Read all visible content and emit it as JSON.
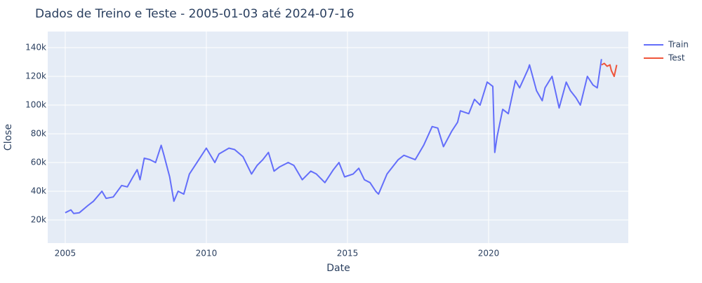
{
  "chart_data": {
    "type": "line",
    "title": "Dados de Treino e Teste - 2005-01-03 até 2024-07-16",
    "x_label": "Date",
    "y_label": "Close",
    "xlim": [
      2004.38,
      2024.95
    ],
    "xticks": [
      2005,
      2010,
      2015,
      2020
    ],
    "ylim": [
      3900,
      151200
    ],
    "yticks": [
      {
        "value": 20000,
        "label": "20k"
      },
      {
        "value": 40000,
        "label": "40k"
      },
      {
        "value": 60000,
        "label": "60k"
      },
      {
        "value": 80000,
        "label": "80k"
      },
      {
        "value": 100000,
        "label": "100k"
      },
      {
        "value": 120000,
        "label": "120k"
      },
      {
        "value": 140000,
        "label": "140k"
      }
    ],
    "grid": true,
    "legend": "top-right",
    "series": [
      {
        "name": "Train",
        "color": "#636efa",
        "x": [
          2005.0,
          2005.2,
          2005.3,
          2005.5,
          2005.8,
          2006.0,
          2006.3,
          2006.45,
          2006.7,
          2007.0,
          2007.2,
          2007.4,
          2007.55,
          2007.65,
          2007.8,
          2008.0,
          2008.2,
          2008.4,
          2008.5,
          2008.7,
          2008.85,
          2009.0,
          2009.2,
          2009.4,
          2009.7,
          2010.0,
          2010.3,
          2010.45,
          2010.8,
          2011.0,
          2011.3,
          2011.6,
          2011.8,
          2012.0,
          2012.2,
          2012.4,
          2012.6,
          2012.9,
          2013.1,
          2013.4,
          2013.7,
          2013.9,
          2014.2,
          2014.5,
          2014.7,
          2014.9,
          2015.2,
          2015.4,
          2015.6,
          2015.8,
          2016.0,
          2016.1,
          2016.4,
          2016.8,
          2017.0,
          2017.4,
          2017.7,
          2018.0,
          2018.2,
          2018.4,
          2018.7,
          2018.9,
          2019.0,
          2019.3,
          2019.5,
          2019.7,
          2019.95,
          2020.15,
          2020.22,
          2020.3,
          2020.5,
          2020.7,
          2020.95,
          2021.1,
          2021.4,
          2021.45,
          2021.7,
          2021.9,
          2022.0,
          2022.25,
          2022.5,
          2022.75,
          2022.9,
          2023.1,
          2023.25,
          2023.5,
          2023.7,
          2023.85,
          2024.0
        ],
        "values": [
          25000,
          27000,
          24500,
          25000,
          30000,
          33000,
          40000,
          35000,
          36000,
          44000,
          43000,
          50000,
          55000,
          48000,
          63000,
          62000,
          60000,
          72000,
          65000,
          50000,
          33000,
          40000,
          38000,
          52000,
          61000,
          70000,
          60000,
          66000,
          70000,
          69000,
          64000,
          52000,
          58000,
          62000,
          67000,
          54000,
          57000,
          60000,
          58000,
          48000,
          54000,
          52000,
          46000,
          55000,
          60000,
          50000,
          52000,
          56000,
          48000,
          46000,
          40000,
          38000,
          52000,
          62000,
          65000,
          62000,
          72000,
          85000,
          84000,
          71000,
          82000,
          88000,
          96000,
          94000,
          104000,
          100000,
          116000,
          113000,
          67000,
          78000,
          97000,
          94000,
          117000,
          112000,
          125000,
          128000,
          110000,
          103000,
          112000,
          120000,
          98000,
          116000,
          110000,
          105000,
          100000,
          120000,
          114000,
          112000,
          132000
        ]
      },
      {
        "name": "Test",
        "color": "#ef553b",
        "x": [
          2024.0,
          2024.1,
          2024.2,
          2024.3,
          2024.35,
          2024.45,
          2024.54
        ],
        "values": [
          128000,
          129000,
          127000,
          128000,
          124000,
          120000,
          128000
        ]
      }
    ]
  }
}
